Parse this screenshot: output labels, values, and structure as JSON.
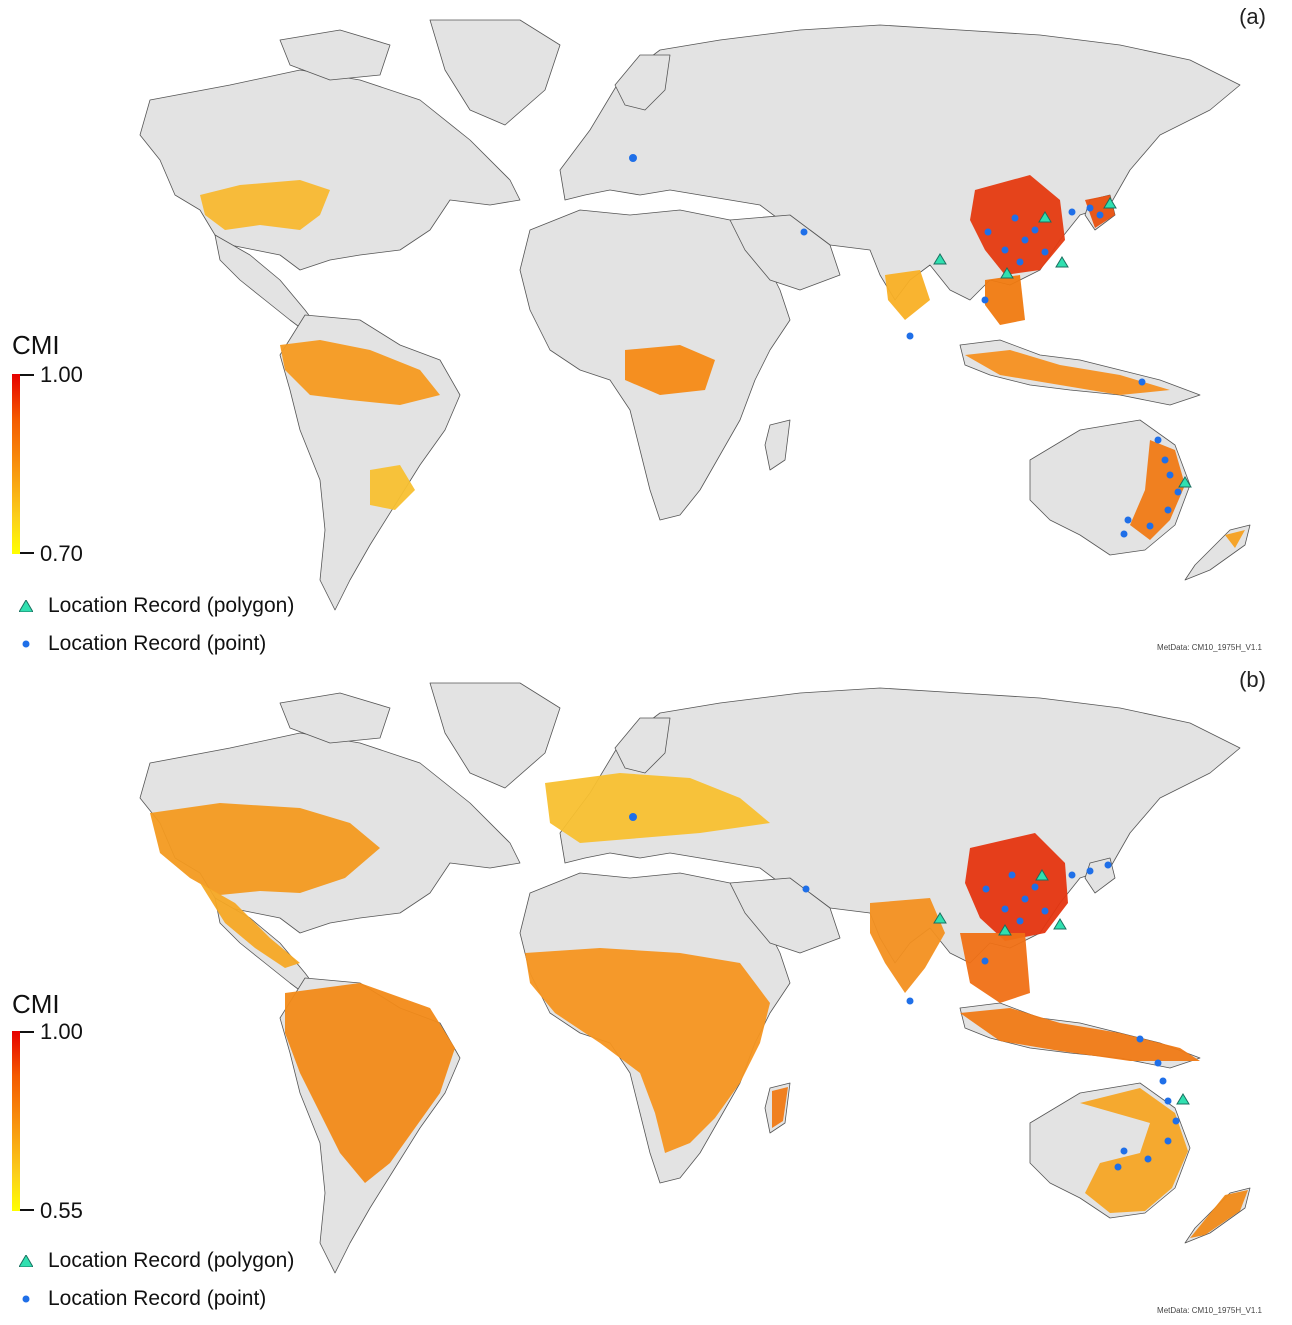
{
  "panels": [
    {
      "label": "(a)",
      "metadata": "MetData: CM10_1975H_V1.1",
      "legend": {
        "title": "CMI",
        "max_label": "1.00",
        "min_label": "0.70",
        "polygon_label": "Location Record (polygon)",
        "point_label": "Location Record (point)"
      }
    },
    {
      "label": "(b)",
      "metadata": "MetData: CM10_1975H_V1.1",
      "legend": {
        "title": "CMI",
        "max_label": "1.00",
        "min_label": "0.55",
        "polygon_label": "Location Record (polygon)",
        "point_label": "Location Record (point)"
      }
    }
  ],
  "colors": {
    "land": "#e3e3e3",
    "border": "#555555",
    "cmi_high": "#e60000",
    "cmi_mid": "#f59a10",
    "cmi_low": "#ffff00",
    "polygon_marker": "#30e0b0",
    "point_marker": "#1f6fe8"
  }
}
